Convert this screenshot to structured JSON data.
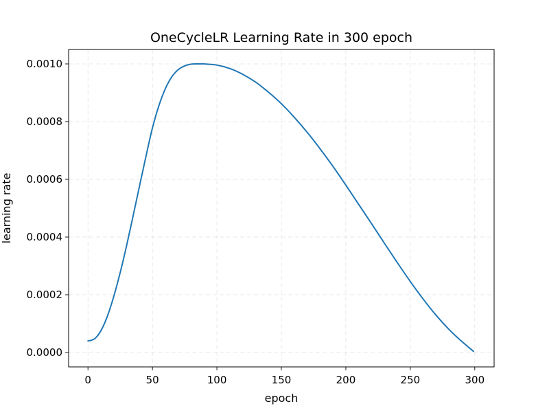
{
  "chart_data": {
    "type": "line",
    "title": "OneCycleLR Learning Rate in 300 epoch",
    "xlabel": "epoch",
    "ylabel": "learning rate",
    "xlim": [
      -15,
      315
    ],
    "ylim": [
      -5e-05,
      0.00105
    ],
    "xticks": [
      0,
      50,
      100,
      150,
      200,
      250,
      300
    ],
    "xtick_labels": [
      "0",
      "50",
      "100",
      "150",
      "200",
      "250",
      "300"
    ],
    "yticks": [
      0.0,
      0.0002,
      0.0004,
      0.0006,
      0.0008,
      0.001
    ],
    "ytick_labels": [
      "0.0000",
      "0.0002",
      "0.0004",
      "0.0006",
      "0.0008",
      "0.0010"
    ],
    "grid": true,
    "line_color": "#1f77b4",
    "series": [
      {
        "x": [
          0,
          5,
          10,
          15,
          20,
          25,
          30,
          35,
          40,
          45,
          50,
          55,
          60,
          65,
          70,
          75,
          80,
          85,
          88,
          90,
          100,
          110,
          120,
          130,
          140,
          150,
          160,
          170,
          180,
          190,
          200,
          210,
          220,
          230,
          240,
          250,
          260,
          270,
          280,
          290,
          299
        ],
        "values": [
          4e-05,
          4.7e-05,
          7.5e-05,
          0.000125,
          0.000194,
          0.000277,
          0.000371,
          0.000473,
          0.000577,
          0.00068,
          0.000778,
          0.000855,
          0.000914,
          0.000955,
          0.00098,
          0.000993,
          0.000999,
          0.001,
          0.001,
          0.001,
          0.000996,
          0.000984,
          0.000964,
          0.000937,
          0.000902,
          0.000862,
          0.000815,
          0.000763,
          0.000706,
          0.000645,
          0.00058,
          0.000513,
          0.000446,
          0.000378,
          0.000311,
          0.000246,
          0.000185,
          0.000129,
          8e-05,
          3.8e-05,
          4e-06
        ]
      }
    ]
  }
}
